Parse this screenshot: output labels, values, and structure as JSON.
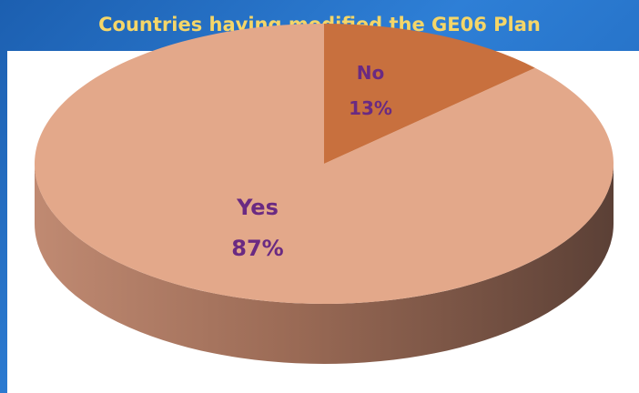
{
  "chart_data": {
    "type": "pie",
    "title": "Countries having modified the GE06 Plan",
    "slices": [
      {
        "name": "Yes",
        "value": 87,
        "pct_label": "87%",
        "color": "#e3a88a"
      },
      {
        "name": "No",
        "value": 13,
        "pct_label": "13%",
        "color": "#c8703e"
      }
    ],
    "style": "3d"
  }
}
